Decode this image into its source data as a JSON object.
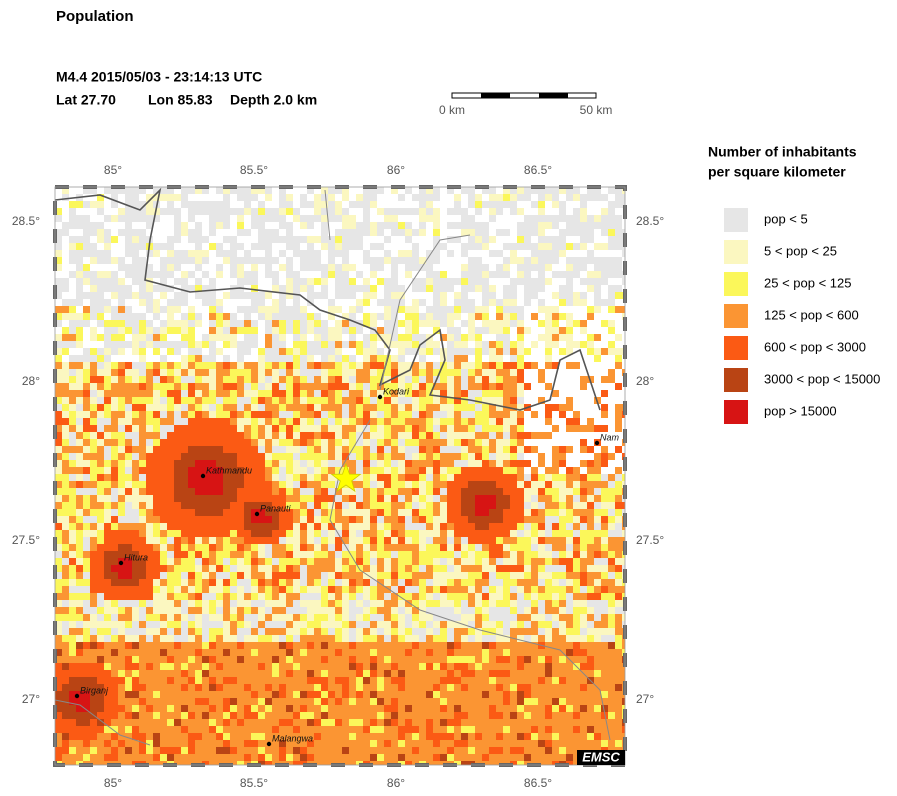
{
  "header": {
    "title": "Population",
    "event": "M4.4  2015/05/03 - 23:14:13 UTC",
    "lat": "Lat 27.70",
    "lon": "Lon  85.83",
    "depth": "Depth  2.0 km"
  },
  "scale_bar": {
    "start": "0 km",
    "end": "50 km"
  },
  "map": {
    "x_ticks": [
      "85°",
      "85.5°",
      "86°",
      "86.5°"
    ],
    "y_ticks": [
      "28.5°",
      "28°",
      "27.5°",
      "27°"
    ],
    "places": [
      "Kodari",
      "Kathmandu",
      "Panauti",
      "Hitura",
      "Birganj",
      "Malangwa",
      "Nam"
    ],
    "credit": "EMSC"
  },
  "legend": {
    "title": [
      "Number of inhabitants",
      "per square kilometer"
    ],
    "items": [
      {
        "label": "pop < 5",
        "color": "#e6e6e6"
      },
      {
        "label": "5 < pop < 25",
        "color": "#fbf7c0"
      },
      {
        "label": "25 < pop < 125",
        "color": "#fbf75a"
      },
      {
        "label": "125 < pop < 600",
        "color": "#fb9533"
      },
      {
        "label": "600 < pop < 3000",
        "color": "#fb5a14"
      },
      {
        "label": "3000 < pop < 15000",
        "color": "#b94414"
      },
      {
        "label": "pop > 15000",
        "color": "#d71414"
      }
    ]
  }
}
